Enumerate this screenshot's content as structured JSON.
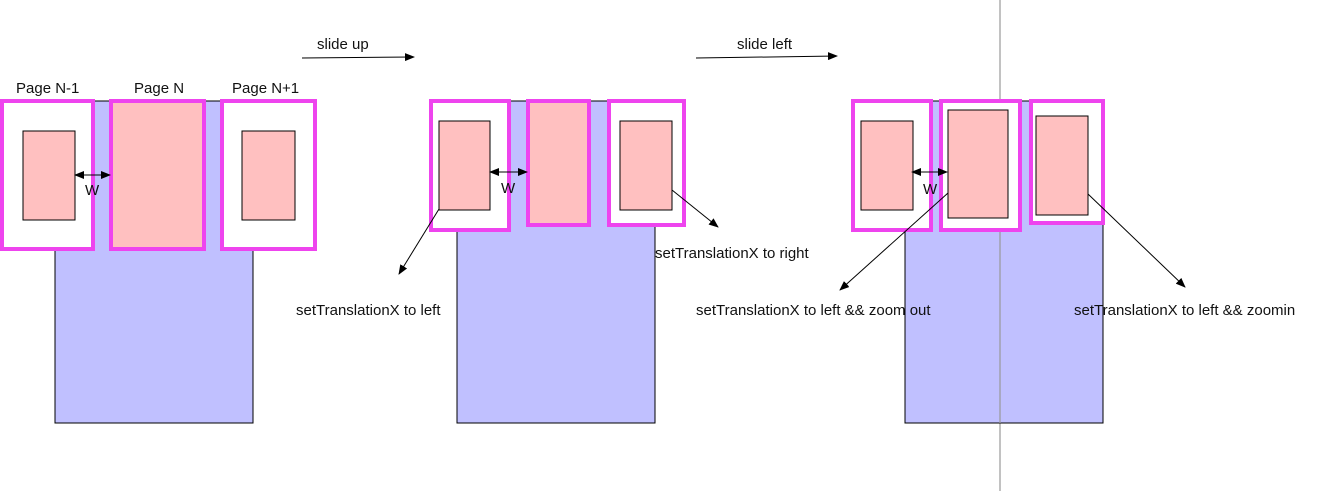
{
  "colors": {
    "background": "#ffffff",
    "container_fill": "#c0c0ff",
    "page_fill": "#ffc0c0",
    "page_frame": "#ee44ee",
    "stroke": "#000000",
    "divider": "#999999"
  },
  "labels": {
    "page_prev": "Page N-1",
    "page_current": "Page N",
    "page_next": "Page N+1",
    "slide_up": "slide up",
    "slide_left": "slide left",
    "w1": "W",
    "w2": "W",
    "w3": "W",
    "translate_left": "setTranslationX to left",
    "translate_right": "setTranslationX to right",
    "translate_left_zoom_out": "setTranslationX to left && zoom out",
    "translate_left_zoom_in": "setTranslationX to left && zoomin"
  }
}
